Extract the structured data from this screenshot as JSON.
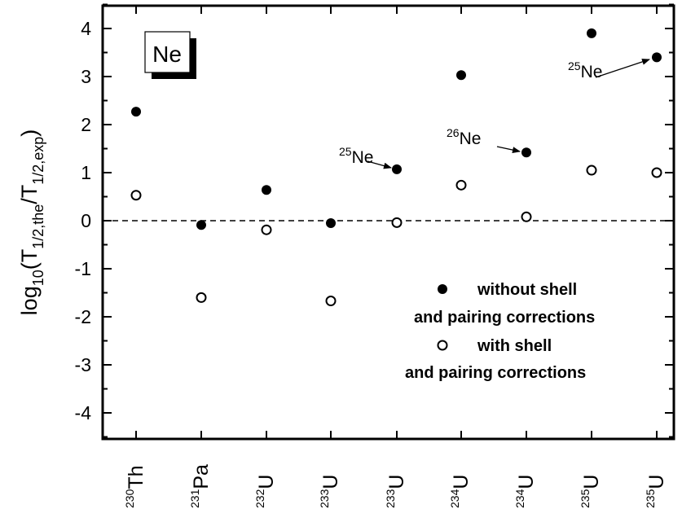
{
  "chart_data": {
    "type": "scatter",
    "title": "",
    "ylabel": {
      "base": "log",
      "sub1": "10",
      "mid": "(T",
      "sub2": "1/2,the",
      "slash": "/T",
      "sub3": "1/2,exp",
      "close": ")"
    },
    "ylim": [
      -4.5,
      4.5
    ],
    "yticks": [
      "-4",
      "-3",
      "-2",
      "-1",
      "0",
      "1",
      "2",
      "3",
      "4"
    ],
    "ytick_values": [
      -4,
      -3,
      -2,
      -1,
      0,
      1,
      2,
      3,
      4
    ],
    "reference_line": 0,
    "categories": [
      {
        "mass": "230",
        "element": "Th"
      },
      {
        "mass": "231",
        "element": "Pa"
      },
      {
        "mass": "232",
        "element": "U"
      },
      {
        "mass": "233",
        "element": "U"
      },
      {
        "mass": "233",
        "element": "U"
      },
      {
        "mass": "234",
        "element": "U"
      },
      {
        "mass": "234",
        "element": "U"
      },
      {
        "mass": "235",
        "element": "U"
      },
      {
        "mass": "235",
        "element": "U"
      }
    ],
    "series": [
      {
        "name": "without shell and pairing corrections",
        "marker": "filled-circle",
        "values": [
          2.27,
          -0.09,
          0.64,
          -0.05,
          1.07,
          3.03,
          1.42,
          3.9,
          3.4
        ]
      },
      {
        "name": "with shell and pairing corrections",
        "marker": "open-circle",
        "points": [
          {
            "x": 0,
            "y": 0.53
          },
          {
            "x": 1,
            "y": -1.6
          },
          {
            "x": 2,
            "y": -0.19
          },
          {
            "x": 3,
            "y": -1.67
          },
          {
            "x": 4,
            "y": -0.04
          },
          {
            "x": 5,
            "y": 0.74
          },
          {
            "x": 6,
            "y": 0.08
          },
          {
            "x": 7,
            "y": 1.05
          },
          {
            "x": 8,
            "y": 1.0
          }
        ]
      }
    ],
    "inset_label": "Ne",
    "annotations": [
      {
        "mass": "25",
        "element": "Ne",
        "target_index": 4
      },
      {
        "mass": "26",
        "element": "Ne",
        "target_index": 6
      },
      {
        "mass": "25",
        "element": "Ne",
        "target_index": 8
      }
    ],
    "legend": {
      "position": "lower-right",
      "entries": [
        {
          "marker": "filled-circle",
          "line1": "without shell",
          "line2": "and pairing corrections"
        },
        {
          "marker": "open-circle",
          "line1": "with shell",
          "line2": "and pairing corrections"
        }
      ]
    }
  }
}
